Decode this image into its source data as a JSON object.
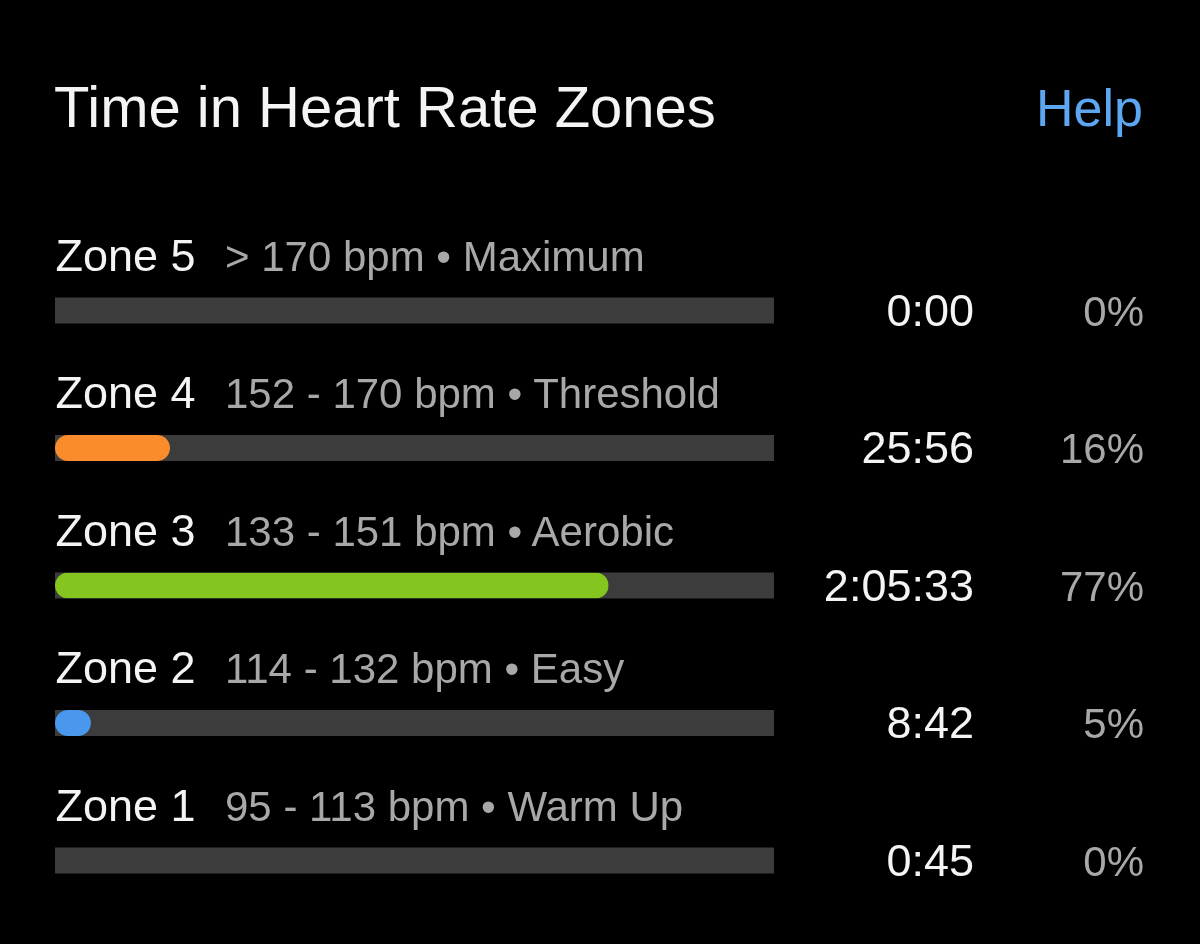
{
  "chart_data": {
    "type": "bar",
    "orientation": "horizontal",
    "title": "Time in Heart Rate Zones",
    "categories": [
      "Zone 5",
      "Zone 4",
      "Zone 3",
      "Zone 2",
      "Zone 1"
    ],
    "values": [
      0,
      16,
      77,
      5,
      0
    ],
    "colors": [
      null,
      "#fb8c2c",
      "#84c51f",
      "#4a98ee",
      "#c4c4c4"
    ],
    "value_labels": [
      "0%",
      "16%",
      "77%",
      "5%",
      "0%"
    ],
    "xlim": [
      0,
      100
    ],
    "tick_labels": "y",
    "annotations": [
      "Help",
      "> 170 bpm • Maximum",
      "152 - 170 bpm • Threshold",
      "133 - 151 bpm • Aerobic",
      "114 - 132 bpm • Easy",
      "95 - 113 bpm • Warm Up",
      "0:00",
      "25:56",
      "2:05:33",
      "8:42",
      "0:45"
    ]
  }
}
